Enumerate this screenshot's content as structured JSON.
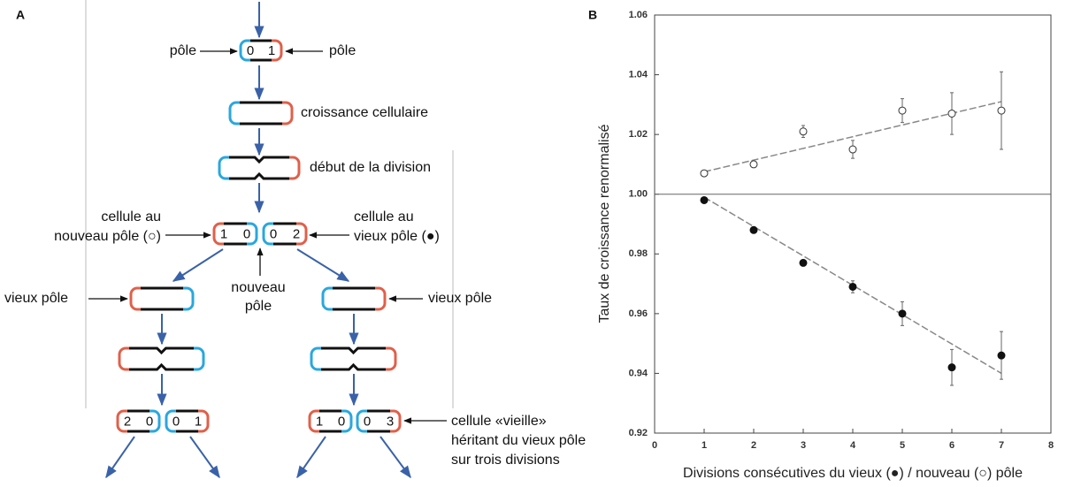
{
  "panel_a": {
    "label": "A",
    "pole_left": "pôle",
    "pole_right": "pôle",
    "growth": "croissance cellulaire",
    "division_start": "début de la division",
    "new_pole_cell": [
      "cellule au",
      "nouveau pôle (○)"
    ],
    "old_pole_cell": [
      "cellule au",
      "vieux pôle (●)"
    ],
    "new_pole": [
      "nouveau",
      "pôle"
    ],
    "old_pole_left": "vieux pôle",
    "old_pole_right": "vieux pôle",
    "old_cell_note": [
      "cellule «vieille»",
      "héritant du vieux pôle",
      "sur trois divisions"
    ],
    "cells": [
      [
        0,
        1
      ],
      [
        1,
        0
      ],
      [
        0,
        2
      ],
      [
        2,
        0
      ],
      [
        0,
        1
      ],
      [
        1,
        0
      ],
      [
        0,
        3
      ]
    ]
  },
  "chart_data": {
    "type": "scatter",
    "panel_label": "B",
    "x_label": "Divisions consécutives du vieux (●) / nouveau (○) pôle",
    "y_label": "Taux de croissance renormalisé",
    "xlim": [
      0,
      8
    ],
    "xticks": [
      0,
      1,
      2,
      3,
      4,
      5,
      6,
      7,
      8
    ],
    "ylim": [
      0.92,
      1.06
    ],
    "yticks": [
      0.92,
      0.94,
      0.96,
      0.98,
      {
        "value": 1,
        "label": "1.00"
      },
      1.02,
      1.04,
      1.06
    ],
    "hline": 1,
    "x": [
      1,
      2,
      3,
      4,
      5,
      6,
      7
    ],
    "series": [
      {
        "marker": "open",
        "color": "#333333",
        "values": [
          1.007,
          1.01,
          1.021,
          1.015,
          1.028,
          1.027,
          1.028
        ],
        "errors": [
          0.001,
          0.001,
          0.002,
          0.003,
          0.004,
          0.007,
          0.013
        ],
        "trend": {
          "x": [
            1,
            7
          ],
          "values": [
            1.0075,
            1.031
          ]
        }
      },
      {
        "marker": "filled",
        "color": "#111111",
        "values": [
          0.998,
          0.988,
          0.977,
          0.969,
          0.96,
          0.942,
          0.946
        ],
        "errors": [
          0.001,
          0.001,
          0.001,
          0.002,
          0.004,
          0.006,
          0.008
        ],
        "trend": {
          "x": [
            1,
            7
          ],
          "values": [
            0.999,
            0.94
          ]
        }
      }
    ]
  }
}
